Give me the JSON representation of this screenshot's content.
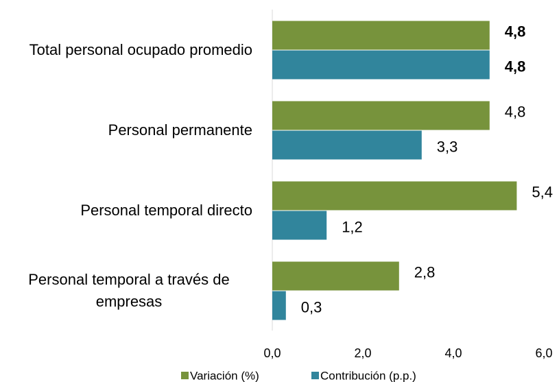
{
  "chart_data": {
    "type": "bar",
    "orientation": "horizontal",
    "categories": [
      "Total personal ocupado promedio",
      "Personal permanente",
      "Personal temporal directo",
      "Personal temporal a través de empresas"
    ],
    "series": [
      {
        "name": "Variación (%)",
        "color": "#77933c",
        "values": [
          4.8,
          4.8,
          5.4,
          2.8
        ],
        "value_labels": [
          "4,8",
          "4,8",
          "5,4",
          "2,8"
        ]
      },
      {
        "name": "Contribución (p.p.)",
        "color": "#31859c",
        "values": [
          4.8,
          3.3,
          1.2,
          0.3
        ],
        "value_labels": [
          "4,8",
          "3,3",
          "1,2",
          "0,3"
        ]
      }
    ],
    "xlim": [
      0,
      6
    ],
    "xticks": [
      {
        "value": 0,
        "label": "0,0"
      },
      {
        "value": 2,
        "label": "2,0"
      },
      {
        "value": 4,
        "label": "4,0"
      },
      {
        "value": 6,
        "label": "6,0"
      }
    ],
    "legend": "bottom"
  }
}
